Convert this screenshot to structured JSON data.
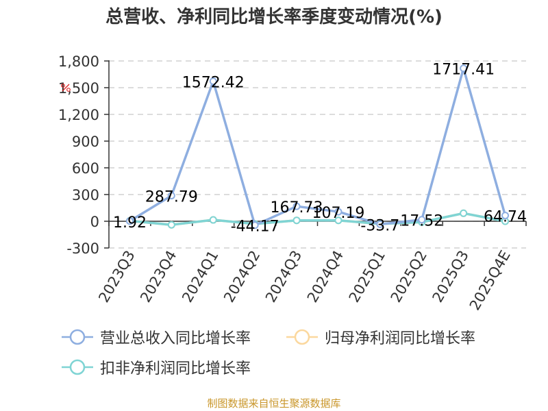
{
  "title": "总营收、净利同比增长率季度变动情况(%)",
  "source_note": "制图数据来自恒生聚源数据库",
  "colors": {
    "revenue": "#8eaee0",
    "parent_net_profit": "#fbd89e",
    "deducted_net_profit": "#7fd4d4",
    "grid": "#c8c8c8",
    "axis": "#333333",
    "source": "#c9962a",
    "percent_icon": "#e02020"
  },
  "legend": [
    {
      "label": "营业总收入同比增长率",
      "color": "#8eaee0"
    },
    {
      "label": "归母净利润同比增长率",
      "color": "#fbd89e"
    },
    {
      "label": "扣非净利润同比增长率",
      "color": "#7fd4d4"
    }
  ],
  "chart_data": {
    "type": "line",
    "title": "总营收、净利同比增长率季度变动情况(%)",
    "xlabel": "",
    "ylabel": "%",
    "ylim": [
      -300,
      1800
    ],
    "yticks": [
      -300,
      0,
      300,
      600,
      900,
      1200,
      1500,
      1800
    ],
    "ytick_labels": [
      "-300",
      "0",
      "300",
      "600",
      "900",
      "1,200",
      "1,500",
      "1,800"
    ],
    "grid": true,
    "legend_position": "bottom",
    "categories": [
      "2023Q3",
      "2023Q4",
      "2024Q1",
      "2024Q2",
      "2024Q3",
      "2024Q4",
      "2025Q1",
      "2025Q2",
      "2025Q3",
      "2025Q4E"
    ],
    "series": [
      {
        "name": "营业总收入同比增长率",
        "values": [
          1.92,
          287.79,
          1572.42,
          -44.17,
          167.73,
          107.19,
          -33.7,
          17.52,
          1717.41,
          64.74
        ],
        "labeled": true
      },
      {
        "name": "归母净利润同比增长率",
        "values": [
          5,
          -40,
          15,
          -30,
          10,
          10,
          -30,
          -10,
          90,
          0
        ],
        "labeled": false
      },
      {
        "name": "扣非净利润同比增长率",
        "values": [
          5,
          -40,
          15,
          -30,
          10,
          10,
          -30,
          -10,
          90,
          0
        ],
        "labeled": false
      }
    ],
    "data_labels": [
      "1.92",
      "287.79",
      "1572.42",
      "-44.17",
      "167.73",
      "107.19",
      "-33.7",
      "17.52",
      "1717.41",
      "64.74"
    ]
  }
}
